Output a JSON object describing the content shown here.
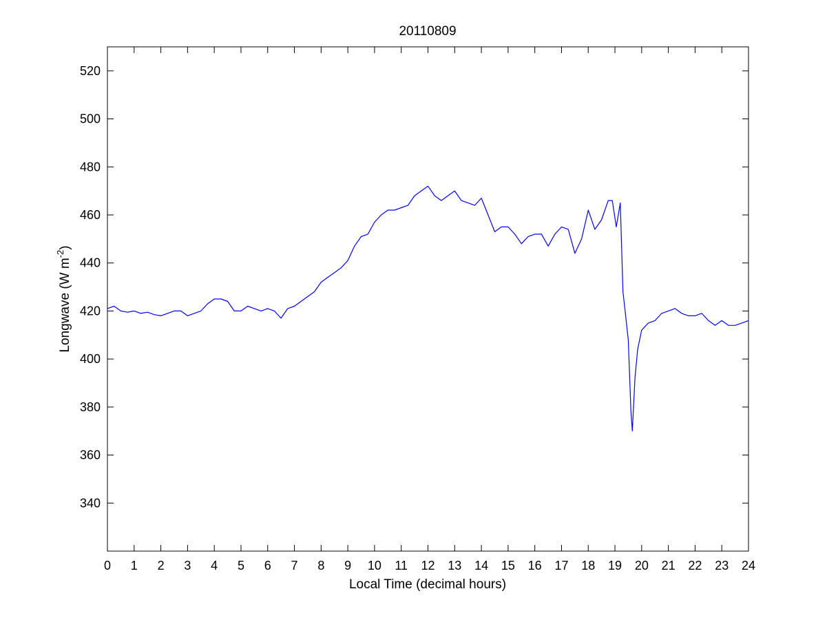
{
  "chart_data": {
    "type": "line",
    "title": "20110809",
    "xlabel": "Local Time (decimal hours)",
    "ylabel": {
      "main": "Longwave (W m",
      "superscript": "-2",
      "close": ")"
    },
    "xlim": [
      0,
      24
    ],
    "ylim": [
      320,
      530
    ],
    "xticks": [
      0,
      1,
      2,
      3,
      4,
      5,
      6,
      7,
      8,
      9,
      10,
      11,
      12,
      13,
      14,
      15,
      16,
      17,
      18,
      19,
      20,
      21,
      22,
      23,
      24
    ],
    "yticks": [
      340,
      360,
      380,
      400,
      420,
      440,
      460,
      480,
      500,
      520
    ],
    "grid": false,
    "legend": "none",
    "series": [
      {
        "color": "#0000ff",
        "x": [
          0,
          0.25,
          0.5,
          0.75,
          1,
          1.25,
          1.5,
          1.75,
          2,
          2.25,
          2.5,
          2.75,
          3,
          3.25,
          3.5,
          3.75,
          4,
          4.25,
          4.5,
          4.75,
          5,
          5.25,
          5.5,
          5.75,
          6,
          6.25,
          6.5,
          6.75,
          7,
          7.25,
          7.5,
          7.75,
          8,
          8.25,
          8.5,
          8.75,
          9,
          9.25,
          9.5,
          9.75,
          10,
          10.25,
          10.5,
          10.75,
          11,
          11.25,
          11.5,
          11.75,
          12,
          12.25,
          12.5,
          12.75,
          13,
          13.25,
          13.5,
          13.75,
          14,
          14.25,
          14.5,
          14.75,
          15,
          15.25,
          15.5,
          15.75,
          16,
          16.25,
          16.5,
          16.75,
          17,
          17.25,
          17.5,
          17.75,
          18,
          18.25,
          18.5,
          18.75,
          18.9,
          19.05,
          19.2,
          19.3,
          19.4,
          19.5,
          19.6,
          19.65,
          19.75,
          19.85,
          20,
          20.25,
          20.5,
          20.75,
          21,
          21.25,
          21.5,
          21.75,
          22,
          22.25,
          22.5,
          22.75,
          23,
          23.25,
          23.5,
          23.75,
          24
        ],
        "y": [
          421,
          422,
          420,
          419.5,
          420,
          419,
          419.5,
          418.5,
          418,
          419,
          420,
          420,
          418,
          419,
          420,
          423,
          425,
          425,
          424,
          420,
          420,
          422,
          421,
          420,
          421,
          420,
          417,
          421,
          422,
          424,
          426,
          428,
          432,
          434,
          436,
          438,
          441,
          447,
          451,
          452,
          457,
          460,
          462,
          462,
          463,
          464,
          468,
          470,
          472,
          468,
          466,
          468,
          470,
          466,
          465,
          464,
          467,
          460,
          453,
          455,
          455,
          452,
          448,
          451,
          452,
          452,
          447,
          452,
          455,
          454,
          444,
          450,
          462,
          454,
          458,
          466,
          466,
          455,
          465,
          428,
          418,
          408,
          378,
          370,
          392,
          404,
          412,
          415,
          416,
          419,
          420,
          421,
          419,
          418,
          418,
          419,
          416,
          414,
          416,
          414,
          414,
          415,
          416
        ]
      }
    ]
  }
}
